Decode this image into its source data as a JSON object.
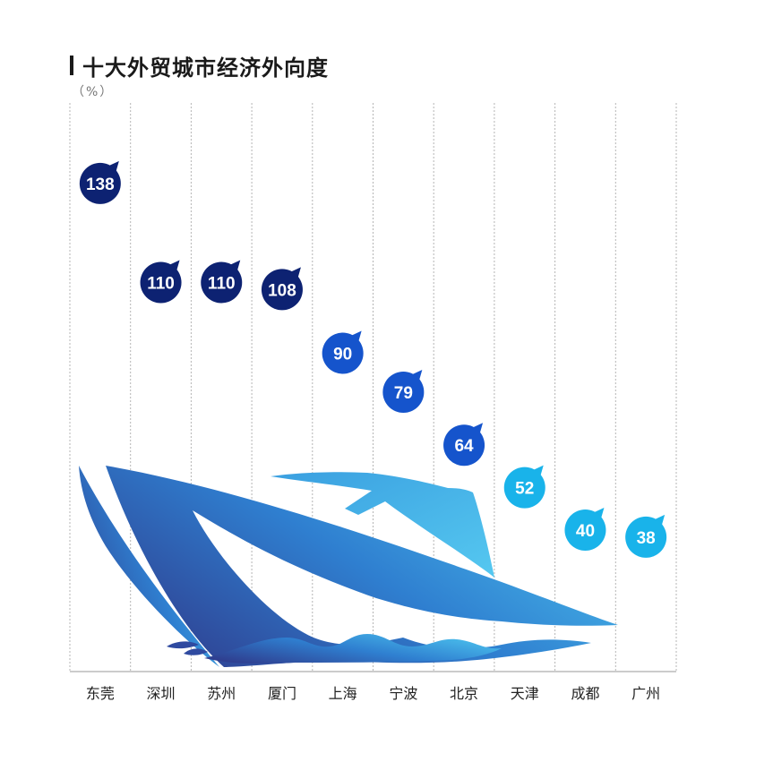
{
  "chart_data": {
    "type": "scatter",
    "title": "十大外贸城市经济外向度",
    "unit": "（%）",
    "categories": [
      "东莞",
      "深圳",
      "苏州",
      "厦门",
      "上海",
      "宁波",
      "北京",
      "天津",
      "成都",
      "广州"
    ],
    "values": [
      138,
      110,
      110,
      108,
      90,
      79,
      64,
      52,
      40,
      38
    ],
    "marker_colors": [
      "#0d2272",
      "#0d2272",
      "#0d2272",
      "#0d2272",
      "#1554cc",
      "#1554cc",
      "#1554cc",
      "#19b3ea",
      "#19b3ea",
      "#19b3ea"
    ],
    "grid": "vertical-dashed",
    "decoration": "ship-illustration"
  }
}
